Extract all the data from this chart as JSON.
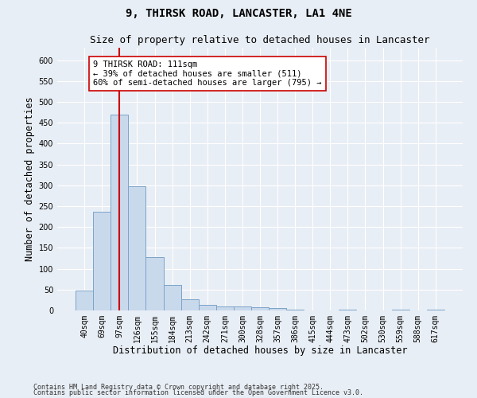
{
  "title1": "9, THIRSK ROAD, LANCASTER, LA1 4NE",
  "title2": "Size of property relative to detached houses in Lancaster",
  "xlabel": "Distribution of detached houses by size in Lancaster",
  "ylabel": "Number of detached properties",
  "categories": [
    "40sqm",
    "69sqm",
    "97sqm",
    "126sqm",
    "155sqm",
    "184sqm",
    "213sqm",
    "242sqm",
    "271sqm",
    "300sqm",
    "328sqm",
    "357sqm",
    "386sqm",
    "415sqm",
    "444sqm",
    "473sqm",
    "502sqm",
    "530sqm",
    "559sqm",
    "588sqm",
    "617sqm"
  ],
  "values": [
    48,
    237,
    470,
    298,
    128,
    62,
    26,
    14,
    9,
    10,
    7,
    5,
    1,
    0,
    0,
    2,
    0,
    0,
    1,
    0,
    2
  ],
  "bar_color": "#c9d9ec",
  "bar_edge_color": "#7ba3c8",
  "background_color": "#e8eef5",
  "grid_color": "#ffffff",
  "vline_x": 2,
  "vline_color": "#cc0000",
  "annotation_line1": "9 THIRSK ROAD: 111sqm",
  "annotation_line2": "← 39% of detached houses are smaller (511)",
  "annotation_line3": "60% of semi-detached houses are larger (795) →",
  "annotation_box_color": "#ffffff",
  "annotation_box_edge": "#cc0000",
  "ylim": [
    0,
    630
  ],
  "yticks": [
    0,
    50,
    100,
    150,
    200,
    250,
    300,
    350,
    400,
    450,
    500,
    550,
    600
  ],
  "footer1": "Contains HM Land Registry data © Crown copyright and database right 2025.",
  "footer2": "Contains public sector information licensed under the Open Government Licence v3.0.",
  "title1_fontsize": 10,
  "title2_fontsize": 9,
  "tick_fontsize": 7,
  "label_fontsize": 8.5,
  "annotation_fontsize": 7.5,
  "footer_fontsize": 6
}
